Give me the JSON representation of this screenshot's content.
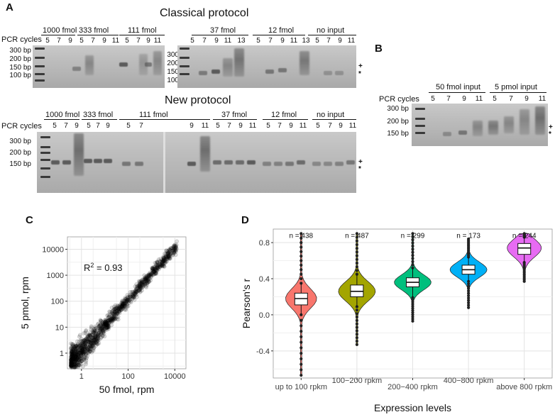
{
  "panel_a": {
    "label": "A",
    "classical_title": "Classical protocol",
    "new_title": "New protocol",
    "pcr_label": "PCR cycles",
    "classical_groups_left": [
      "1000 fmol",
      "333 fmol",
      "111 fmol"
    ],
    "classical_groups_right": [
      "37 fmol",
      "12 fmol",
      "no input"
    ],
    "new_groups_left": [
      "1000 fmol",
      "333 fmol"
    ],
    "new_group_111": "111 fmol",
    "new_groups_right": [
      "37 fmol",
      "12 fmol",
      "no input"
    ],
    "cycles": [
      "5",
      "7",
      "9",
      "11",
      "13"
    ],
    "new_cycles": [
      "5",
      "7",
      "9",
      "11"
    ],
    "ladder_classical_left": [
      "300 bp",
      "200 bp",
      "150 bp",
      "100 bp"
    ],
    "ladder_classical_mid": [
      "300",
      "200",
      "150",
      "100"
    ],
    "ladder_new": [
      "300 bp",
      "200 bp",
      "150 bp"
    ],
    "marker_plus": "+",
    "marker_star": "*"
  },
  "panel_b": {
    "label": "B",
    "pcr_label": "PCR cycles",
    "groups": [
      "50 fmol input",
      "5 pmol input"
    ],
    "cycles": [
      "5",
      "7",
      "9",
      "11"
    ],
    "ladder": [
      "300 bp",
      "200 bp",
      "150 bp"
    ]
  },
  "chart_data": [
    {
      "panel": "C",
      "type": "scatter",
      "xlabel": "50 fmol, rpm",
      "ylabel": "5 pmol, rpm",
      "annotation_r2": "R",
      "annotation_r2_sup": "2",
      "annotation_r2_value": " = 0.93",
      "x_scale": "log10",
      "y_scale": "log10",
      "xlim": [
        0.25,
        30000
      ],
      "ylim": [
        0.25,
        30000
      ],
      "x_ticks": [
        1,
        100,
        10000
      ],
      "x_tick_labels": [
        "1",
        "100",
        "10000"
      ],
      "y_ticks": [
        1,
        10,
        100,
        1000,
        10000
      ],
      "y_tick_labels": [
        "1",
        "10",
        "100",
        "1000",
        "10000"
      ],
      "r_squared": 0.93,
      "grid": true
    },
    {
      "panel": "D",
      "type": "violin",
      "xlabel": "Expression levels",
      "ylabel": "Pearson's r",
      "ylim": [
        -0.7,
        0.95
      ],
      "y_ticks": [
        -0.4,
        0.0,
        0.4,
        0.8
      ],
      "y_tick_labels": [
        "-0.4",
        "0.0",
        "0.4",
        "0.8"
      ],
      "categories": [
        "up to 100 rpkm",
        "100−200 rpkm",
        "200−400 rpkm",
        "400−800 rpkm",
        "above 800 rpkm"
      ],
      "n_labels": [
        "n = 438",
        "n = 487",
        "n = 299",
        "n = 173",
        "n = 244"
      ],
      "n": [
        438,
        487,
        299,
        173,
        244
      ],
      "colors": [
        "#f8766d",
        "#a3a500",
        "#00bf7d",
        "#00b0f6",
        "#e76bf3"
      ],
      "median": [
        0.18,
        0.26,
        0.36,
        0.5,
        0.74
      ],
      "q1": [
        0.11,
        0.2,
        0.31,
        0.45,
        0.67
      ],
      "q3": [
        0.24,
        0.33,
        0.41,
        0.55,
        0.79
      ],
      "whisker_low": [
        0.0,
        0.09,
        0.19,
        0.37,
        0.58
      ],
      "whisker_high": [
        0.35,
        0.45,
        0.52,
        0.64,
        0.86
      ],
      "min": [
        -0.67,
        -0.33,
        -0.07,
        0.08,
        0.37
      ],
      "max": [
        0.9,
        0.9,
        0.9,
        0.84,
        0.9
      ],
      "grid": true
    }
  ]
}
